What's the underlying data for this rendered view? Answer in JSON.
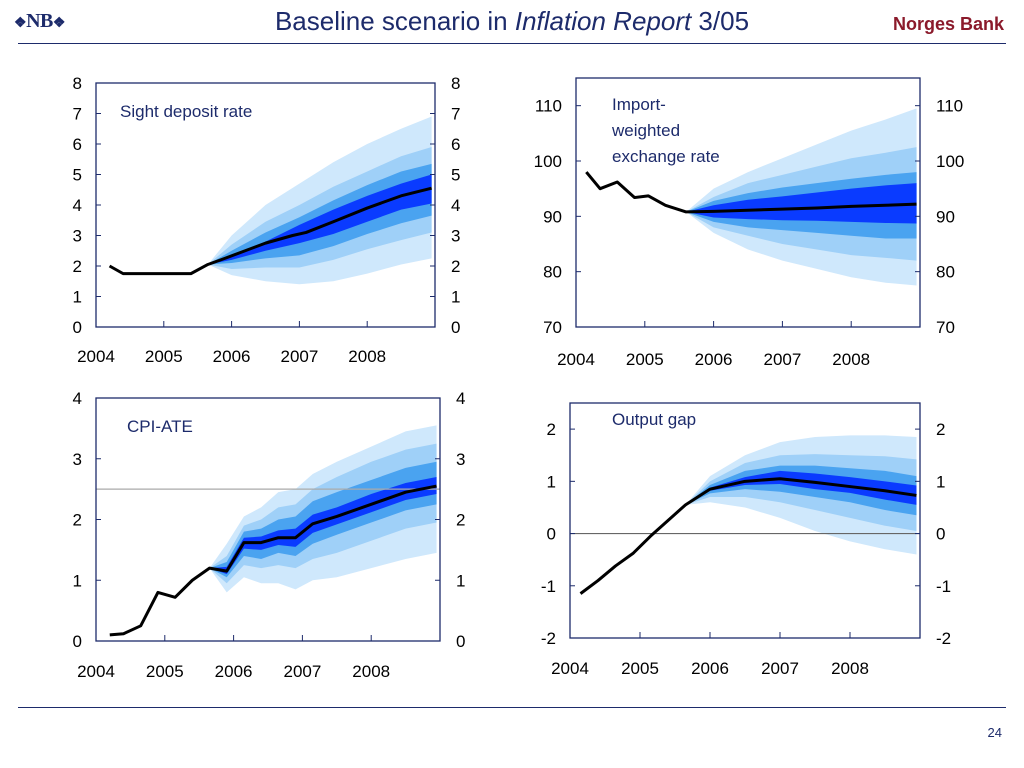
{
  "header": {
    "logo": "NB",
    "title_prefix": "Baseline scenario in ",
    "title_italic": "Inflation Report",
    "title_suffix": " 3/05",
    "brand": "Norges Bank"
  },
  "footer": {
    "page_number": "24"
  },
  "colors": {
    "outer_band": "#cfe8fc",
    "band_2": "#9fd0f8",
    "band_3": "#4aa3f0",
    "inner_band": "#0a3bff",
    "median_line": "#000000",
    "reference_line": "#aaaaaa"
  },
  "chart_data": [
    {
      "type": "area",
      "title": "Sight deposit rate",
      "xlabel": "",
      "ylabel": "",
      "xlim": [
        2004,
        2009
      ],
      "ylim": [
        0,
        8
      ],
      "yticks": [
        0,
        1,
        2,
        3,
        4,
        5,
        6,
        7,
        8
      ],
      "xtick_labels": [
        "2004",
        "2005",
        "2006",
        "2007",
        "2008"
      ],
      "line": {
        "x": [
          2004.2,
          2004.4,
          2004.7,
          2005.0,
          2005.2,
          2005.4,
          2005.65,
          2005.9,
          2006.2,
          2006.5,
          2006.9,
          2007.1,
          2007.5,
          2008.0,
          2008.5,
          2008.95
        ],
        "y": [
          2.0,
          1.75,
          1.75,
          1.75,
          1.75,
          1.75,
          2.05,
          2.25,
          2.5,
          2.75,
          3.0,
          3.1,
          3.45,
          3.9,
          4.3,
          4.55
        ]
      },
      "fan": {
        "x": [
          2005.65,
          2006.0,
          2006.5,
          2007.0,
          2007.5,
          2008.0,
          2008.5,
          2008.95
        ],
        "bands": [
          {
            "lower": [
              2.05,
              1.7,
              1.5,
              1.4,
              1.5,
              1.75,
              2.05,
              2.25
            ],
            "upper": [
              2.05,
              3.0,
              4.0,
              4.7,
              5.4,
              6.0,
              6.5,
              6.9
            ]
          },
          {
            "lower": [
              2.05,
              1.9,
              1.95,
              1.95,
              2.2,
              2.55,
              2.85,
              3.1
            ],
            "upper": [
              2.05,
              2.7,
              3.45,
              4.0,
              4.6,
              5.1,
              5.6,
              5.9
            ]
          },
          {
            "lower": [
              2.05,
              2.1,
              2.25,
              2.35,
              2.65,
              3.05,
              3.4,
              3.65
            ],
            "upper": [
              2.05,
              2.5,
              3.1,
              3.6,
              4.15,
              4.65,
              5.1,
              5.35
            ]
          },
          {
            "lower": [
              2.05,
              2.2,
              2.5,
              2.75,
              3.05,
              3.45,
              3.85,
              4.05
            ],
            "upper": [
              2.05,
              2.35,
              2.8,
              3.35,
              3.85,
              4.3,
              4.7,
              5.0
            ]
          }
        ]
      }
    },
    {
      "type": "area",
      "title": "Import-weighted exchange rate",
      "title_lines": [
        "Import-",
        "weighted",
        "exchange rate"
      ],
      "xlabel": "",
      "ylabel": "",
      "xlim": [
        2004,
        2009
      ],
      "ylim": [
        70,
        115
      ],
      "yticks": [
        70,
        80,
        90,
        100,
        110
      ],
      "xtick_labels": [
        "2004",
        "2005",
        "2006",
        "2007",
        "2008"
      ],
      "line": {
        "x": [
          2004.15,
          2004.35,
          2004.6,
          2004.85,
          2005.05,
          2005.3,
          2005.6,
          2006.0,
          2006.5,
          2007.0,
          2007.5,
          2008.0,
          2008.5,
          2008.95
        ],
        "y": [
          98.0,
          95.0,
          96.2,
          93.4,
          93.7,
          92.0,
          90.8,
          90.9,
          91.1,
          91.3,
          91.5,
          91.8,
          92.0,
          92.2
        ]
      },
      "fan": {
        "x": [
          2005.6,
          2006.0,
          2006.5,
          2007.0,
          2007.5,
          2008.0,
          2008.5,
          2008.95
        ],
        "bands": [
          {
            "lower": [
              90.8,
              87.0,
              84.0,
              82.0,
              80.5,
              79.0,
              78.0,
              77.5
            ],
            "upper": [
              90.8,
              95.0,
              98.0,
              100.5,
              103.0,
              105.5,
              107.5,
              109.5
            ]
          },
          {
            "lower": [
              90.8,
              88.0,
              86.5,
              85.0,
              84.0,
              83.0,
              82.5,
              82.0
            ],
            "upper": [
              90.8,
              93.5,
              96.0,
              97.5,
              99.0,
              100.5,
              101.5,
              102.5
            ]
          },
          {
            "lower": [
              90.8,
              89.0,
              88.0,
              87.5,
              87.0,
              86.5,
              86.0,
              86.0
            ],
            "upper": [
              90.8,
              92.8,
              94.2,
              95.2,
              96.0,
              96.8,
              97.5,
              98.0
            ]
          },
          {
            "lower": [
              90.8,
              89.8,
              89.5,
              89.3,
              89.2,
              89.0,
              88.8,
              88.7
            ],
            "upper": [
              90.8,
              92.0,
              93.0,
              93.6,
              94.3,
              95.0,
              95.6,
              96.0
            ]
          }
        ]
      }
    },
    {
      "type": "area",
      "title": "CPI-ATE",
      "xlabel": "",
      "ylabel": "",
      "xlim": [
        2004,
        2009
      ],
      "ylim": [
        0,
        4
      ],
      "yticks": [
        0,
        1,
        2,
        3,
        4
      ],
      "xtick_labels": [
        "2004",
        "2005",
        "2006",
        "2007",
        "2008"
      ],
      "reference_line": 2.5,
      "line": {
        "x": [
          2004.2,
          2004.4,
          2004.65,
          2004.9,
          2005.15,
          2005.4,
          2005.65,
          2005.9,
          2006.15,
          2006.4,
          2006.65,
          2006.9,
          2007.15,
          2007.5,
          2008.0,
          2008.5,
          2008.95
        ],
        "y": [
          0.1,
          0.12,
          0.25,
          0.8,
          0.72,
          1.0,
          1.2,
          1.15,
          1.62,
          1.62,
          1.7,
          1.7,
          1.93,
          2.05,
          2.25,
          2.45,
          2.55
        ]
      },
      "fan": {
        "x": [
          2005.65,
          2005.9,
          2006.15,
          2006.4,
          2006.65,
          2006.9,
          2007.15,
          2007.5,
          2008.0,
          2008.5,
          2008.95
        ],
        "bands": [
          {
            "lower": [
              1.2,
              0.8,
              1.05,
              0.95,
              0.95,
              0.85,
              1.0,
              1.05,
              1.2,
              1.35,
              1.45
            ],
            "upper": [
              1.2,
              1.6,
              2.05,
              2.2,
              2.45,
              2.5,
              2.75,
              2.95,
              3.2,
              3.45,
              3.55
            ]
          },
          {
            "lower": [
              1.2,
              0.95,
              1.25,
              1.2,
              1.25,
              1.2,
              1.35,
              1.45,
              1.65,
              1.85,
              1.95
            ],
            "upper": [
              1.2,
              1.4,
              1.9,
              2.0,
              2.2,
              2.25,
              2.5,
              2.7,
              2.95,
              3.15,
              3.25
            ]
          },
          {
            "lower": [
              1.2,
              1.05,
              1.4,
              1.35,
              1.45,
              1.4,
              1.6,
              1.75,
              1.95,
              2.15,
              2.25
            ],
            "upper": [
              1.2,
              1.3,
              1.8,
              1.85,
              2.0,
              2.05,
              2.3,
              2.45,
              2.65,
              2.85,
              2.95
            ]
          },
          {
            "lower": [
              1.2,
              1.1,
              1.52,
              1.5,
              1.58,
              1.55,
              1.78,
              1.92,
              2.12,
              2.32,
              2.42
            ],
            "upper": [
              1.2,
              1.22,
              1.7,
              1.72,
              1.82,
              1.85,
              2.08,
              2.2,
              2.42,
              2.6,
              2.7
            ]
          }
        ]
      }
    },
    {
      "type": "area",
      "title": "Output gap",
      "xlabel": "",
      "ylabel": "",
      "xlim": [
        2004,
        2009
      ],
      "ylim": [
        -2,
        2.5
      ],
      "yticks": [
        -2,
        -1,
        0,
        1,
        2
      ],
      "xtick_labels": [
        "2004",
        "2005",
        "2006",
        "2007",
        "2008"
      ],
      "reference_line": 0,
      "line": {
        "x": [
          2004.15,
          2004.4,
          2004.65,
          2004.9,
          2005.15,
          2005.4,
          2005.65,
          2006.0,
          2006.5,
          2007.0,
          2007.5,
          2008.0,
          2008.5,
          2008.95
        ],
        "y": [
          -1.15,
          -0.9,
          -0.62,
          -0.38,
          -0.05,
          0.25,
          0.55,
          0.85,
          1.0,
          1.05,
          0.98,
          0.9,
          0.82,
          0.73
        ]
      },
      "fan": {
        "x": [
          2005.65,
          2006.0,
          2006.5,
          2007.0,
          2007.5,
          2008.0,
          2008.5,
          2008.95
        ],
        "bands": [
          {
            "lower": [
              0.55,
              0.6,
              0.5,
              0.3,
              0.05,
              -0.15,
              -0.3,
              -0.4
            ],
            "upper": [
              0.55,
              1.1,
              1.5,
              1.75,
              1.85,
              1.88,
              1.88,
              1.85
            ]
          },
          {
            "lower": [
              0.55,
              0.7,
              0.7,
              0.6,
              0.45,
              0.3,
              0.15,
              0.05
            ],
            "upper": [
              0.55,
              1.0,
              1.35,
              1.5,
              1.52,
              1.5,
              1.48,
              1.42
            ]
          },
          {
            "lower": [
              0.55,
              0.77,
              0.85,
              0.8,
              0.7,
              0.6,
              0.45,
              0.35
            ],
            "upper": [
              0.55,
              0.93,
              1.2,
              1.3,
              1.3,
              1.25,
              1.2,
              1.1
            ]
          },
          {
            "lower": [
              0.55,
              0.82,
              0.93,
              0.95,
              0.85,
              0.78,
              0.65,
              0.55
            ],
            "upper": [
              0.55,
              0.88,
              1.08,
              1.2,
              1.15,
              1.08,
              1.0,
              0.92
            ]
          }
        ]
      }
    }
  ]
}
